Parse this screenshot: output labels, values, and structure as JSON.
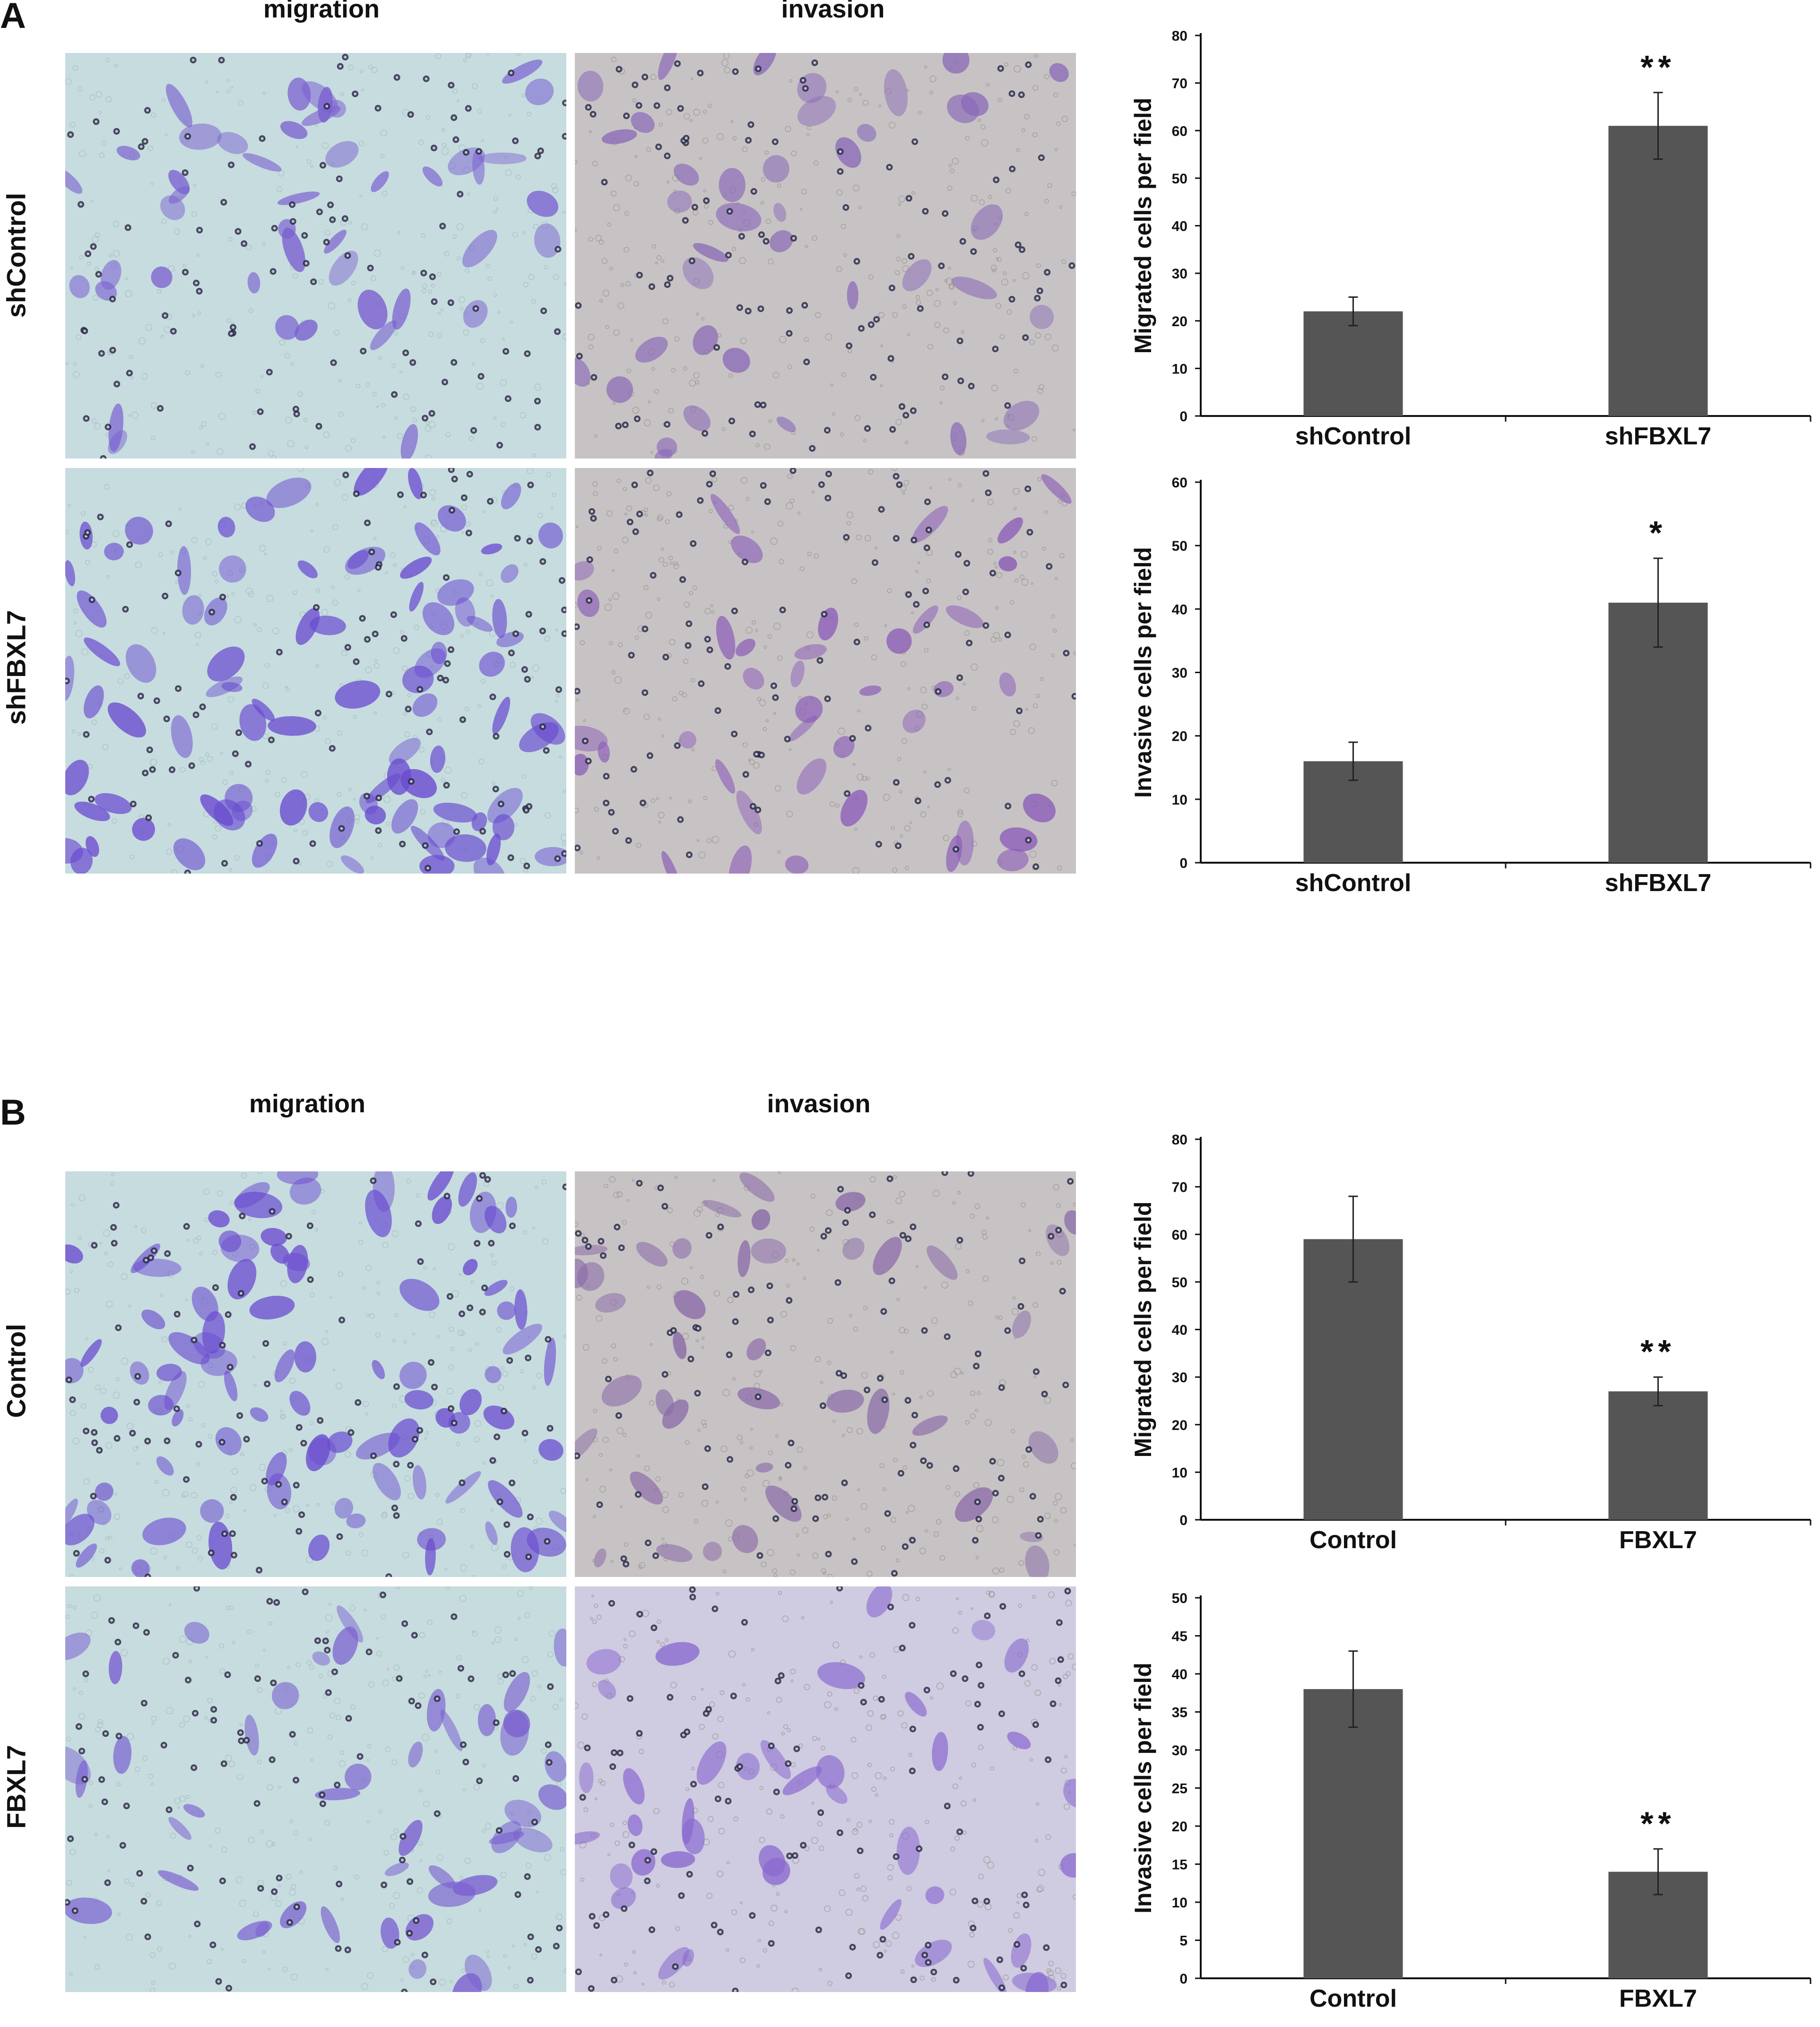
{
  "figure": {
    "panel_a": {
      "letter": "A",
      "col_titles": [
        "migration",
        "invasion"
      ],
      "row_titles": [
        "shControl",
        "shFBXL7"
      ],
      "images": [
        {
          "label": "shControl migration micrograph",
          "stain": "light",
          "cell_color": "#7a5fd0"
        },
        {
          "label": "shControl invasion micrograph",
          "stain": "invasion",
          "cell_color": "#8a6ab8"
        },
        {
          "label": "shFBXL7 migration micrograph",
          "stain": "dense",
          "cell_color": "#6a4bd0"
        },
        {
          "label": "shFBXL7 invasion micrograph",
          "stain": "invasion",
          "cell_color": "#8a5ab8"
        }
      ]
    },
    "panel_b": {
      "letter": "B",
      "col_titles": [
        "migration",
        "invasion"
      ],
      "row_titles": [
        "Control",
        "FBXL7"
      ],
      "images": [
        {
          "label": "Control migration micrograph",
          "stain": "dense",
          "cell_color": "#6a4bd0"
        },
        {
          "label": "Control invasion micrograph",
          "stain": "invasion",
          "cell_color": "#8a6aa8"
        },
        {
          "label": "FBXL7 migration micrograph",
          "stain": "light",
          "cell_color": "#7a5fd0"
        },
        {
          "label": "FBXL7 invasion micrograph",
          "stain": "invasion-light",
          "cell_color": "#8a6ad0"
        }
      ]
    }
  },
  "colors": {
    "bar": "#555555",
    "axis": "#111111"
  },
  "chart_data": [
    {
      "type": "bar",
      "panel": "A",
      "categories": [
        "shControl",
        "shFBXL7"
      ],
      "values": [
        22,
        61
      ],
      "errors": [
        3,
        7
      ],
      "significance": [
        "",
        "**"
      ],
      "ylabel": "Migrated cells per field",
      "ylim": [
        0,
        80
      ],
      "yticks": [
        "0",
        "10",
        "20",
        "30",
        "40",
        "50",
        "60",
        "70",
        "80"
      ]
    },
    {
      "type": "bar",
      "panel": "A",
      "categories": [
        "shControl",
        "shFBXL7"
      ],
      "values": [
        16,
        41
      ],
      "errors": [
        3,
        7
      ],
      "significance": [
        "",
        "*"
      ],
      "ylabel": "Invasive cells per field",
      "ylim": [
        0,
        60
      ],
      "yticks": [
        "0",
        "10",
        "20",
        "30",
        "40",
        "50",
        "60"
      ]
    },
    {
      "type": "bar",
      "panel": "B",
      "categories": [
        "Control",
        "FBXL7"
      ],
      "values": [
        59,
        27
      ],
      "errors": [
        9,
        3
      ],
      "significance": [
        "",
        "**"
      ],
      "ylabel": "Migrated cells per field",
      "ylim": [
        0,
        80
      ],
      "yticks": [
        "0",
        "10",
        "20",
        "30",
        "40",
        "50",
        "60",
        "70",
        "80"
      ]
    },
    {
      "type": "bar",
      "panel": "B",
      "categories": [
        "Control",
        "FBXL7"
      ],
      "values": [
        38,
        14
      ],
      "errors": [
        5,
        3
      ],
      "significance": [
        "",
        "**"
      ],
      "ylabel": "Invasive cells per field",
      "ylim": [
        0,
        50
      ],
      "yticks": [
        "0",
        "5",
        "10",
        "15",
        "20",
        "25",
        "30",
        "35",
        "40",
        "45",
        "50"
      ]
    }
  ]
}
